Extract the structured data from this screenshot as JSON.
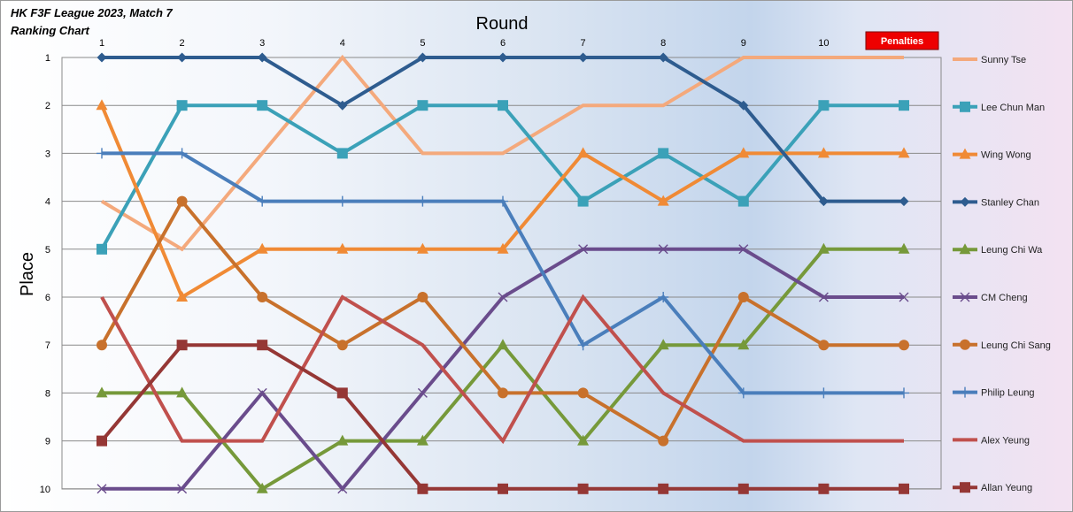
{
  "chart_data": {
    "type": "line",
    "title": "HK F3F League 2023, Match 7",
    "subtitle": "Ranking Chart",
    "xlabel": "Round",
    "ylabel": "Place",
    "x": [
      1,
      2,
      3,
      4,
      5,
      6,
      7,
      8,
      9,
      10,
      11
    ],
    "x_tick_labels": [
      "1",
      "2",
      "3",
      "4",
      "5",
      "6",
      "7",
      "8",
      "9",
      "10"
    ],
    "x_extra_label": "Penalties",
    "ylim": [
      10,
      1
    ],
    "y_ticks": [
      1,
      2,
      3,
      4,
      5,
      6,
      7,
      8,
      9,
      10
    ],
    "y_inverted": true,
    "grid": "horizontal",
    "legend_position": "right",
    "series": [
      {
        "name": "Sunny Tse",
        "color": "#F4A97C",
        "marker": "none",
        "values": [
          4,
          5,
          3,
          1,
          3,
          3,
          2,
          2,
          1,
          1,
          1
        ]
      },
      {
        "name": "Lee Chun Man",
        "color": "#3BA1B8",
        "marker": "square",
        "values": [
          5,
          2,
          2,
          3,
          2,
          2,
          4,
          3,
          4,
          2,
          2
        ]
      },
      {
        "name": "Wing Wong",
        "color": "#F08A35",
        "marker": "triangle",
        "values": [
          2,
          6,
          5,
          5,
          5,
          5,
          3,
          4,
          3,
          3,
          3
        ]
      },
      {
        "name": "Stanley Chan",
        "color": "#2E5C8F",
        "marker": "diamond",
        "values": [
          1,
          1,
          1,
          2,
          1,
          1,
          1,
          1,
          2,
          4,
          4
        ]
      },
      {
        "name": "Leung Chi Wa",
        "color": "#76993A",
        "marker": "triangle",
        "values": [
          8,
          8,
          10,
          9,
          9,
          7,
          9,
          7,
          7,
          5,
          5
        ]
      },
      {
        "name": "CM Cheng",
        "color": "#6A4C8C",
        "marker": "x",
        "values": [
          10,
          10,
          8,
          10,
          8,
          6,
          5,
          5,
          5,
          6,
          6
        ]
      },
      {
        "name": "Leung Chi Sang",
        "color": "#C8712C",
        "marker": "circle",
        "values": [
          7,
          4,
          6,
          7,
          6,
          8,
          8,
          9,
          6,
          7,
          7
        ]
      },
      {
        "name": "Philip Leung",
        "color": "#4A7EBB",
        "marker": "plus",
        "values": [
          3,
          3,
          4,
          4,
          4,
          4,
          7,
          6,
          8,
          8,
          8
        ]
      },
      {
        "name": "Alex Yeung",
        "color": "#C0504D",
        "marker": "none",
        "values": [
          6,
          9,
          9,
          6,
          7,
          9,
          6,
          8,
          9,
          9,
          9
        ]
      },
      {
        "name": "Allan Yeung",
        "color": "#953735",
        "marker": "square",
        "values": [
          9,
          7,
          7,
          8,
          10,
          10,
          10,
          10,
          10,
          10,
          10
        ]
      }
    ]
  }
}
